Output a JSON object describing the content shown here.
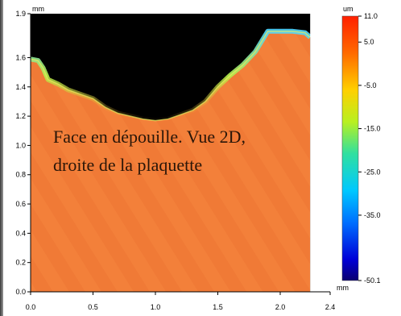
{
  "chart_data": {
    "type": "heatmap",
    "title": "",
    "x_unit": "mm",
    "y_unit": "mm",
    "colorbar_unit": "um",
    "xlim": [
      0.0,
      2.4
    ],
    "ylim": [
      0.0,
      1.9
    ],
    "x_ticks": [
      "0.0",
      "0.5",
      "1.0",
      "1.5",
      "2.0",
      "2.4"
    ],
    "x_tick_values": [
      0.0,
      0.5,
      1.0,
      1.5,
      2.0,
      2.4
    ],
    "y_ticks": [
      "0.0",
      "0.2",
      "0.4",
      "0.6",
      "0.8",
      "1.0",
      "1.2",
      "1.4",
      "1.6",
      "1.9"
    ],
    "y_tick_values": [
      0.0,
      0.2,
      0.4,
      0.6,
      0.8,
      1.0,
      1.2,
      1.4,
      1.6,
      1.9
    ],
    "colorbar_ticks": [
      "11.0",
      "5.0",
      "-5.0",
      "-15.0",
      "-25.0",
      "-35.0",
      "-50.1"
    ],
    "colorbar_tick_values": [
      11.0,
      5.0,
      -5.0,
      -15.0,
      -25.0,
      -35.0,
      -50.1
    ],
    "colorbar_range": [
      -50.1,
      11.0
    ],
    "colormap": [
      "#0a0070",
      "#0000d8",
      "#0070ff",
      "#00c8ff",
      "#30e0a0",
      "#b8f020",
      "#ffd000",
      "#ff6a00",
      "#ff2000"
    ],
    "surface_color": "#f07a36",
    "no_data_color": "#000000",
    "annotation": [
      "Face en dépouille. Vue 2D,",
      "droite de la plaquette"
    ],
    "notch_boundary": [
      [
        0.0,
        1.59
      ],
      [
        0.06,
        1.58
      ],
      [
        0.1,
        1.53
      ],
      [
        0.14,
        1.45
      ],
      [
        0.22,
        1.42
      ],
      [
        0.3,
        1.38
      ],
      [
        0.4,
        1.35
      ],
      [
        0.5,
        1.32
      ],
      [
        0.6,
        1.26
      ],
      [
        0.7,
        1.22
      ],
      [
        0.8,
        1.2
      ],
      [
        0.9,
        1.18
      ],
      [
        1.0,
        1.17
      ],
      [
        1.1,
        1.18
      ],
      [
        1.2,
        1.21
      ],
      [
        1.3,
        1.24
      ],
      [
        1.4,
        1.3
      ],
      [
        1.5,
        1.4
      ],
      [
        1.6,
        1.48
      ],
      [
        1.7,
        1.55
      ],
      [
        1.8,
        1.64
      ],
      [
        1.9,
        1.78
      ],
      [
        2.0,
        1.78
      ],
      [
        2.1,
        1.78
      ],
      [
        2.2,
        1.77
      ],
      [
        2.24,
        1.74
      ]
    ],
    "surface_right_edge": 2.24
  }
}
